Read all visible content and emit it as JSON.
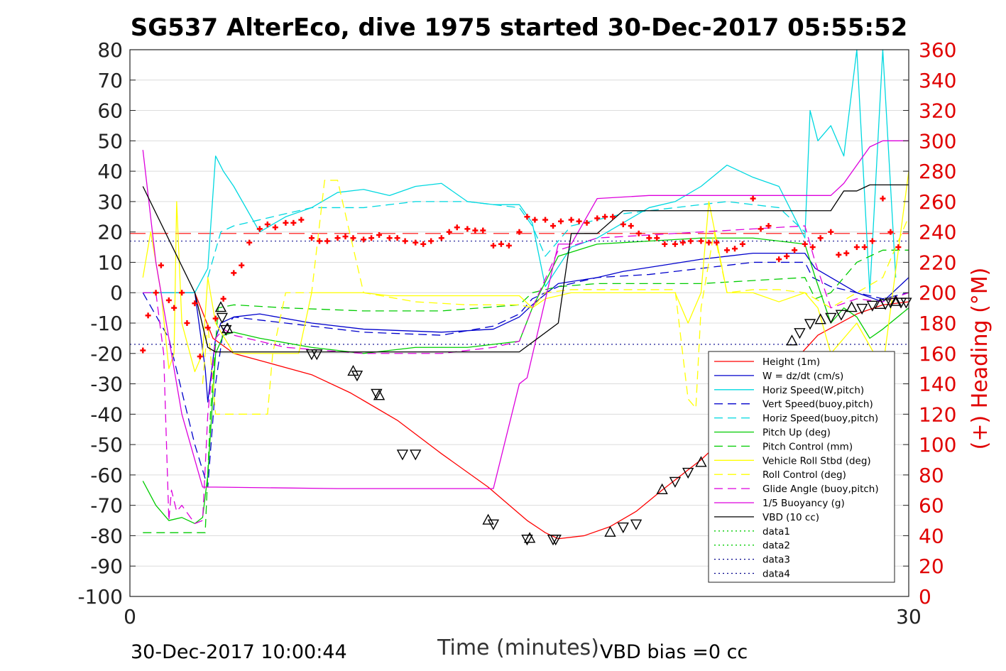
{
  "chart_data": {
    "type": "line",
    "title": "SG537 AlterEco, dive 1975 started 30-Dec-2017 05:55:52",
    "xlabel": "Time (minutes)",
    "ylabel_right": "(+) Heading (°M)",
    "xlim": [
      0,
      30
    ],
    "ylim": [
      -100,
      80
    ],
    "ylim_right": [
      0,
      360
    ],
    "x_ticks": [
      "0",
      "30"
    ],
    "y_ticks": [
      "80",
      "70",
      "60",
      "50",
      "40",
      "30",
      "20",
      "10",
      "0",
      "-10",
      "-20",
      "-30",
      "-40",
      "-50",
      "-60",
      "-70",
      "-80",
      "-90",
      "-100"
    ],
    "y_ticks_right": [
      "360",
      "340",
      "320",
      "300",
      "280",
      "260",
      "240",
      "220",
      "200",
      "180",
      "160",
      "140",
      "120",
      "100",
      "80",
      "60",
      "40",
      "20",
      "0"
    ],
    "grid": "horizontal",
    "legend_position": "bottom-right",
    "footer_left": "30-Dec-2017 10:00:44",
    "footer_right": "VBD bias =0 cc",
    "reference_lines": [
      {
        "name": "heading-reference",
        "y_right": 239,
        "color": "#ff0000",
        "dash": "long"
      },
      {
        "name": "upper-dotted",
        "y": 17,
        "color": "#00008b",
        "dash": "dot"
      },
      {
        "name": "lower-dotted",
        "y": -17,
        "color": "#00008b",
        "dash": "dot"
      }
    ],
    "series": [
      {
        "name": "Height (1m)",
        "color": "#ff0000",
        "dash": "solid",
        "x": [
          0.5,
          2.5,
          3.2,
          4.0,
          5.3,
          7.0,
          8.5,
          10.3,
          12.0,
          13.8,
          15.3,
          16.0,
          16.5,
          17.5,
          18.5,
          19.5,
          20.5,
          22.0,
          23.5,
          25.0,
          26.5,
          28.0,
          29.0,
          30.0
        ],
        "y": [
          0,
          0,
          -15,
          -20,
          -23,
          -27,
          -33,
          -42,
          -53,
          -64,
          -75,
          -79,
          -81,
          -80,
          -77,
          -72,
          -65,
          -55,
          -43,
          -28,
          -14,
          -7,
          -4,
          -3
        ]
      },
      {
        "name": "W = dz/dt (cm/s)",
        "color": "#0000cc",
        "dash": "solid",
        "x": [
          0.5,
          2.5,
          2.9,
          3.0,
          3.3,
          3.5,
          4.0,
          5.0,
          7.0,
          9.0,
          12.0,
          14.0,
          15.0,
          15.5,
          16.5,
          18.0,
          19.0,
          20.5,
          22.0,
          24.0,
          26.0,
          26.4,
          27.0,
          28.0,
          29.0,
          30.0
        ],
        "y": [
          0,
          0,
          -25,
          -36,
          -15,
          -10,
          -8,
          -7,
          -10,
          -12,
          -13,
          -12,
          -8,
          -4,
          3,
          5,
          7,
          9,
          11,
          13,
          13,
          8,
          5,
          0,
          -3,
          5
        ]
      },
      {
        "name": "Horiz Speed(W,pitch)",
        "color": "#00d8e0",
        "dash": "solid",
        "x": [
          0.5,
          2.5,
          3.0,
          3.3,
          3.6,
          4.0,
          5.0,
          6.0,
          7.0,
          8.0,
          9.0,
          10.0,
          11.0,
          12.0,
          13.0,
          14.0,
          15.0,
          15.5,
          16.0,
          17.0,
          18.0,
          19.0,
          20.0,
          21.0,
          22.0,
          23.0,
          24.0,
          25.0,
          26.0,
          26.2,
          26.5,
          27.0,
          27.5,
          28.0,
          28.5,
          29.0,
          29.5
        ],
        "y": [
          0,
          0,
          8,
          45,
          40,
          35,
          20,
          25,
          28,
          33,
          34,
          32,
          35,
          36,
          30,
          29,
          29,
          23,
          2,
          15,
          18,
          23,
          28,
          30,
          35,
          42,
          38,
          35,
          18,
          60,
          50,
          55,
          45,
          80,
          0,
          80,
          5
        ]
      },
      {
        "name": "Vert Speed(buoy,pitch)",
        "color": "#0000cc",
        "dash": "dash",
        "x": [
          0.5,
          1.5,
          2.5,
          3.0,
          3.3,
          3.6,
          4.0,
          6.0,
          9.0,
          12.0,
          14.0,
          15.0,
          15.5,
          16.5,
          18.0,
          20.0,
          22.0,
          24.0,
          26.0,
          26.3,
          27.0,
          28.0,
          29.0,
          30.0
        ],
        "y": [
          0,
          -15,
          -50,
          -64,
          -30,
          -12,
          -8,
          -10,
          -13,
          -14,
          -11,
          -7,
          -2,
          2,
          5,
          6,
          8,
          10,
          10,
          5,
          2,
          0,
          -2,
          0
        ]
      },
      {
        "name": "Horiz Speed(buoy,pitch)",
        "color": "#00d8e0",
        "dash": "dash",
        "x": [
          3.0,
          3.5,
          4.0,
          5.0,
          7.0,
          9.0,
          11.0,
          13.0,
          15.0,
          15.5,
          16.0,
          17.0,
          19.0,
          21.0,
          23.0,
          25.0,
          26.0
        ],
        "y": [
          5,
          20,
          22,
          24,
          28,
          28,
          30,
          30,
          28,
          22,
          12,
          22,
          26,
          28,
          30,
          28,
          20
        ]
      },
      {
        "name": "Pitch Up (deg)",
        "color": "#00cc00",
        "dash": "solid",
        "x": [
          0.5,
          1.0,
          1.5,
          2.0,
          2.5,
          2.8,
          3.0,
          3.3,
          3.6,
          4.0,
          5.0,
          7.0,
          9.0,
          11.0,
          13.0,
          15.0,
          15.5,
          16.5,
          18.0,
          20.0,
          22.0,
          24.0,
          26.0,
          26.4,
          27.0,
          27.5,
          28.0,
          28.5,
          29.0,
          30.0
        ],
        "y": [
          -62,
          -70,
          -75,
          -74,
          -76,
          -74,
          -60,
          -20,
          -14,
          -13,
          -15,
          -18,
          -20,
          -18,
          -18,
          -16,
          -5,
          12,
          16,
          17,
          18,
          18,
          16,
          5,
          -10,
          -5,
          -8,
          -15,
          -12,
          -5
        ]
      },
      {
        "name": "Pitch Control (mm)",
        "color": "#00cc00",
        "dash": "dash",
        "x": [
          0.5,
          1.5,
          2.5,
          2.9,
          3.1,
          3.4,
          4.0,
          6.0,
          9.0,
          12.0,
          15.0,
          15.5,
          16.5,
          18.0,
          20.0,
          22.0,
          24.0,
          26.0,
          26.4,
          27.0,
          28.0,
          29.0,
          30.0
        ],
        "y": [
          -79,
          -79,
          -79,
          -79,
          -40,
          -5,
          -4,
          -5,
          -6,
          -6,
          -4,
          0,
          2,
          3,
          3,
          3,
          4,
          5,
          -2,
          0,
          10,
          14,
          14
        ]
      },
      {
        "name": "Vehicle Roll Stbd (deg)",
        "color": "#ffff00",
        "dash": "solid",
        "x": [
          0.5,
          0.8,
          1.2,
          1.5,
          1.7,
          1.8,
          2.0,
          2.5,
          2.8,
          3.0,
          3.3,
          4.0,
          5.0,
          6.0,
          6.5,
          7.0,
          7.5,
          8.0,
          9.0,
          10.0,
          12.0,
          14.0,
          15.0,
          15.5,
          16.0,
          17.0,
          18.0,
          19.0,
          20.0,
          21.0,
          21.5,
          22.0,
          22.3,
          23.0,
          24.0,
          25.0,
          26.0,
          26.5,
          27.0,
          28.0,
          29.0,
          30.0
        ],
        "y": [
          5,
          20,
          0,
          -25,
          -20,
          30,
          -10,
          -26,
          -20,
          5,
          -10,
          -20,
          -20,
          -20,
          -20,
          0,
          0,
          0,
          0,
          -1,
          -1,
          -1,
          -1,
          -5,
          -2,
          0,
          0,
          0,
          0,
          0,
          -10,
          0,
          30,
          0,
          0,
          -3,
          0,
          -5,
          -20,
          -10,
          -25,
          40
        ]
      },
      {
        "name": "Roll Control (deg)",
        "color": "#ffff00",
        "dash": "dash",
        "x": [
          2.8,
          3.0,
          3.3,
          4.0,
          5.0,
          5.3,
          5.5,
          6.0,
          7.0,
          7.5,
          8.0,
          9.0,
          11.0,
          13.0,
          15.0,
          15.5,
          16.0,
          17.0,
          19.0,
          20.5,
          21.0,
          21.5,
          21.8,
          22.0,
          22.5,
          23.0,
          24.0,
          25.0,
          26.0,
          27.0,
          28.0,
          29.0,
          30.0
        ],
        "y": [
          -30,
          -10,
          -40,
          -40,
          -40,
          -40,
          -20,
          0,
          0,
          37,
          37,
          0,
          -3,
          -4,
          -4,
          -5,
          0,
          1,
          1,
          1,
          1,
          -35,
          -38,
          -5,
          20,
          0,
          1,
          1,
          0,
          -5,
          0,
          5,
          25
        ]
      },
      {
        "name": "Glide Angle (buoy,pitch)",
        "color": "#dd00dd",
        "dash": "dash",
        "x": [
          0.5,
          1.0,
          1.3,
          1.5,
          1.6,
          1.8,
          2.0,
          2.5,
          2.8,
          3.0,
          3.3,
          3.6,
          4.0,
          6.0,
          9.0,
          12.0,
          14.0,
          15.0,
          15.5,
          16.5,
          18.0,
          20.0,
          22.0,
          24.0,
          26.0,
          26.4,
          27.0,
          28.0,
          29.0,
          30.0
        ],
        "y": [
          0,
          0,
          -20,
          -75,
          -65,
          -72,
          -70,
          -76,
          -75,
          -40,
          -15,
          -12,
          -14,
          -18,
          -20,
          -20,
          -18,
          -16,
          -5,
          14,
          18,
          19,
          20,
          21,
          22,
          10,
          -5,
          -2,
          -3,
          0
        ]
      },
      {
        "name": "1/5 Buoyancy (g)",
        "color": "#dd00dd",
        "dash": "solid",
        "x": [
          0.5,
          1.0,
          2.0,
          2.8,
          3.0,
          3.3,
          8.0,
          14.0,
          15.0,
          15.3,
          16.5,
          17.0,
          18.0,
          20.0,
          23.0,
          26.0,
          27.0,
          27.5,
          28.0,
          28.5,
          29.0,
          30.0
        ],
        "y": [
          47,
          10,
          -40,
          -64,
          -64,
          -64,
          -64.5,
          -64.5,
          -30,
          -28,
          16,
          16,
          31,
          32,
          32,
          32,
          32,
          36,
          42,
          48,
          50,
          50
        ]
      },
      {
        "name": "VBD (10 cc)",
        "color": "#000000",
        "dash": "solid",
        "x": [
          0.5,
          2.5,
          3.0,
          3.3,
          8.0,
          14.0,
          15.0,
          16.5,
          17.0,
          18.0,
          19.0,
          23.0,
          27.0,
          27.5,
          28.0,
          28.5,
          29.0,
          30.0
        ],
        "y": [
          35,
          0,
          -18,
          -19.5,
          -19.5,
          -19.5,
          -19.5,
          -10,
          19.5,
          19.5,
          27,
          27,
          27,
          33.5,
          33.5,
          35.5,
          35.5,
          35.5
        ]
      },
      {
        "name": "data1",
        "color": "#00cc00",
        "dash": "dot",
        "x": [],
        "y": []
      },
      {
        "name": "data2",
        "color": "#00cc00",
        "dash": "dot",
        "x": [],
        "y": []
      },
      {
        "name": "data3",
        "color": "#00008b",
        "dash": "dot",
        "x": [],
        "y": []
      },
      {
        "name": "data4",
        "color": "#00008b",
        "dash": "dot",
        "x": [],
        "y": []
      }
    ],
    "heading_points": {
      "color": "#ff0000",
      "axis": "right",
      "x": [
        0.5,
        0.7,
        1.0,
        1.2,
        1.5,
        1.7,
        2.0,
        2.2,
        2.5,
        2.7,
        3.0,
        3.3,
        3.6,
        4.0,
        4.3,
        4.6,
        5.0,
        5.3,
        5.6,
        6.0,
        6.3,
        6.6,
        7.0,
        7.3,
        7.6,
        8.0,
        8.3,
        8.6,
        9.0,
        9.3,
        9.6,
        10.0,
        10.3,
        10.6,
        11.0,
        11.3,
        11.6,
        12.0,
        12.3,
        12.6,
        13.0,
        13.3,
        13.6,
        14.0,
        14.3,
        14.6,
        15.0,
        15.3,
        15.6,
        16.0,
        16.3,
        16.6,
        17.0,
        17.3,
        17.6,
        18.0,
        18.3,
        18.6,
        19.0,
        19.3,
        19.6,
        20.0,
        20.3,
        20.6,
        21.0,
        21.3,
        21.6,
        22.0,
        22.3,
        22.6,
        23.0,
        23.3,
        23.6,
        24.0,
        24.3,
        24.6,
        25.0,
        25.3,
        25.6,
        26.0,
        26.3,
        26.6,
        27.0,
        27.3,
        27.6,
        28.0,
        28.3,
        28.6,
        29.0,
        29.3,
        29.6
      ],
      "y": [
        162,
        185,
        200,
        218,
        195,
        190,
        200,
        180,
        193,
        158,
        177,
        183,
        196,
        213,
        218,
        233,
        242,
        245,
        243,
        246,
        246,
        248,
        236,
        234,
        234,
        236,
        237,
        236,
        235,
        236,
        238,
        236,
        236,
        234,
        233,
        232,
        234,
        236,
        240,
        243,
        242,
        241,
        241,
        231,
        232,
        231,
        240,
        250,
        248,
        248,
        244,
        247,
        248,
        247,
        246,
        249,
        250,
        250,
        245,
        244,
        239,
        236,
        236,
        232,
        232,
        233,
        234,
        234,
        233,
        233,
        228,
        229,
        232,
        262,
        242,
        244,
        222,
        224,
        228,
        232,
        230,
        236,
        240,
        225,
        226,
        230,
        230,
        234,
        262,
        240,
        230
      ]
    },
    "markers": {
      "color": "#000000",
      "x": [
        3.5,
        3.55,
        3.7,
        3.75,
        7.0,
        7.2,
        8.6,
        8.75,
        9.5,
        9.6,
        10.5,
        11.0,
        13.8,
        14.0,
        15.3,
        15.4,
        16.3,
        16.4,
        18.5,
        19.0,
        19.5,
        20.5,
        21.0,
        21.5,
        22.0,
        22.6,
        23.0,
        23.4,
        23.8,
        24.2,
        25.5,
        25.8,
        26.2,
        26.6,
        27.0,
        27.4,
        27.8,
        28.2,
        28.6,
        28.9,
        29.1,
        29.3,
        29.5,
        29.7,
        29.9
      ],
      "y": [
        -5,
        -8,
        -12,
        -12,
        -20,
        -20,
        -26,
        -27,
        -33,
        -34,
        -53,
        -53,
        -75,
        -76,
        -81,
        -81,
        -81,
        -81,
        -79,
        -77,
        -76,
        -65,
        -62,
        -59,
        -56,
        -53,
        -50,
        -47,
        -44,
        -40,
        -16,
        -13,
        -10,
        -9,
        -8,
        -7,
        -5,
        -5,
        -4,
        -4,
        -3.5,
        -3,
        -3,
        -3,
        -3
      ]
    }
  }
}
